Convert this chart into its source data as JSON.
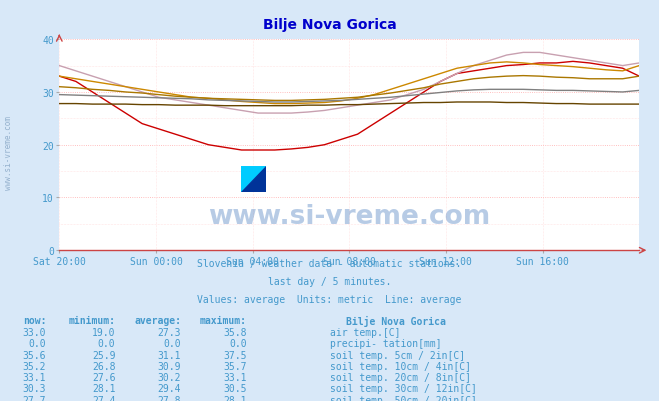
{
  "title": "Bilje Nova Gorica",
  "bg_color": "#d8e8f8",
  "plot_bg_color": "#ffffff",
  "title_color": "#0000cc",
  "text_color": "#4499cc",
  "xlim": [
    0,
    288
  ],
  "ylim": [
    0,
    40
  ],
  "yticks": [
    0,
    10,
    20,
    30,
    40
  ],
  "xtick_labels": [
    "Sat 20:00",
    "Sun 00:00",
    "Sun 04:00",
    "Sun 08:00",
    "Sun 12:00",
    "Sun 16:00"
  ],
  "xtick_positions": [
    0,
    48,
    96,
    144,
    192,
    240
  ],
  "subtitle1": "Slovenia / weather data - automatic stations.",
  "subtitle2": "last day / 5 minutes.",
  "subtitle3": "Values: average  Units: metric  Line: average",
  "watermark": "www.si-vreme.com",
  "legend_title": "Bilje Nova Gorica",
  "series": [
    {
      "label": "air temp.[C]",
      "color": "#cc0000",
      "now": 33.0,
      "min": 19.0,
      "avg": 27.3,
      "max": 35.8,
      "points": [
        33,
        32,
        30,
        28,
        26,
        24,
        23,
        22,
        21,
        20,
        19.5,
        19,
        19,
        19,
        19.2,
        19.5,
        20,
        21,
        22,
        24,
        26,
        28,
        30,
        32,
        33.5,
        34,
        34.5,
        35,
        35.2,
        35.5,
        35.5,
        35.8,
        35.5,
        35,
        34.5,
        33
      ]
    },
    {
      "label": "precipi- tation[mm]",
      "color": "#0000cc",
      "now": 0.0,
      "min": 0.0,
      "avg": 0.0,
      "max": 0.0,
      "points": [
        0,
        0,
        0,
        0,
        0,
        0,
        0,
        0,
        0,
        0,
        0,
        0,
        0,
        0,
        0,
        0,
        0,
        0,
        0,
        0,
        0,
        0,
        0,
        0,
        0,
        0,
        0,
        0,
        0,
        0,
        0,
        0,
        0,
        0,
        0,
        0
      ]
    },
    {
      "label": "soil temp. 5cm / 2in[C]",
      "color": "#c8a0b0",
      "now": 35.6,
      "min": 25.9,
      "avg": 31.1,
      "max": 37.5,
      "points": [
        35,
        34,
        33,
        32,
        31,
        30,
        29,
        28.5,
        28,
        27.5,
        27,
        26.5,
        26,
        26,
        26,
        26.2,
        26.5,
        27,
        27.5,
        28,
        28.5,
        29.5,
        30.5,
        32,
        33.5,
        35,
        36,
        37,
        37.5,
        37.5,
        37,
        36.5,
        36,
        35.5,
        35,
        35.5
      ]
    },
    {
      "label": "soil temp. 10cm / 4in[C]",
      "color": "#cc8800",
      "now": 35.2,
      "min": 26.8,
      "avg": 30.9,
      "max": 35.7,
      "points": [
        33,
        32.5,
        32,
        31.5,
        31,
        30.5,
        30,
        29.5,
        29,
        28.8,
        28.5,
        28.2,
        28,
        27.8,
        27.8,
        27.9,
        28,
        28.3,
        28.8,
        29.5,
        30.5,
        31.5,
        32.5,
        33.5,
        34.5,
        35,
        35.5,
        35.7,
        35.5,
        35.2,
        35,
        34.8,
        34.5,
        34.2,
        34,
        35
      ]
    },
    {
      "label": "soil temp. 20cm / 8in[C]",
      "color": "#aa7700",
      "now": 33.1,
      "min": 27.6,
      "avg": 30.2,
      "max": 33.1,
      "points": [
        31,
        30.8,
        30.5,
        30.3,
        30,
        29.8,
        29.5,
        29.2,
        29,
        28.8,
        28.7,
        28.6,
        28.5,
        28.4,
        28.4,
        28.5,
        28.6,
        28.8,
        29,
        29.4,
        29.8,
        30.3,
        30.8,
        31.5,
        32,
        32.5,
        32.8,
        33,
        33.1,
        33,
        32.8,
        32.7,
        32.5,
        32.5,
        32.5,
        33
      ]
    },
    {
      "label": "soil temp. 30cm / 12in[C]",
      "color": "#808080",
      "now": 30.3,
      "min": 28.1,
      "avg": 29.4,
      "max": 30.5,
      "points": [
        29.5,
        29.4,
        29.3,
        29.2,
        29.1,
        29.0,
        28.9,
        28.8,
        28.7,
        28.5,
        28.4,
        28.3,
        28.2,
        28.1,
        28.1,
        28.2,
        28.3,
        28.4,
        28.6,
        28.8,
        29.0,
        29.3,
        29.6,
        29.9,
        30.2,
        30.4,
        30.5,
        30.5,
        30.5,
        30.4,
        30.3,
        30.3,
        30.2,
        30.1,
        30.0,
        30.3
      ]
    },
    {
      "label": "soil temp. 50cm / 20in[C]",
      "color": "#664400",
      "now": 27.7,
      "min": 27.4,
      "avg": 27.8,
      "max": 28.1,
      "points": [
        27.8,
        27.8,
        27.7,
        27.7,
        27.7,
        27.6,
        27.6,
        27.5,
        27.5,
        27.5,
        27.4,
        27.4,
        27.4,
        27.4,
        27.4,
        27.5,
        27.5,
        27.6,
        27.6,
        27.7,
        27.8,
        27.9,
        28.0,
        28.0,
        28.1,
        28.1,
        28.1,
        28.0,
        28.0,
        27.9,
        27.8,
        27.8,
        27.7,
        27.7,
        27.7,
        27.7
      ]
    }
  ],
  "logo_colors": [
    "#ffff00",
    "#00ccff",
    "#003399"
  ]
}
